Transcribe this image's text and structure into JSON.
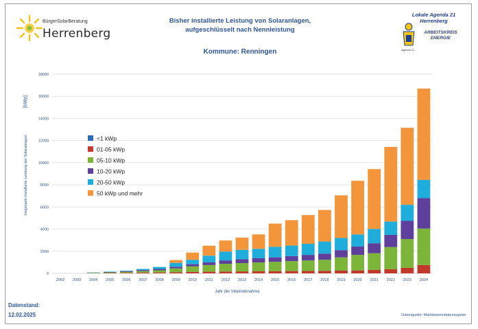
{
  "header": {
    "logo_small": "BürgerSolarBeratung",
    "logo_big": "Herrenberg",
    "title_line1": "Bisher installierte Leistung von Solaranlagen,",
    "title_line2": "aufgeschlüsselt nach Nennleistung",
    "subtitle": "Kommune: Renningen",
    "right_logo_line1": "Lokale Agenda 21",
    "right_logo_line2": "Herrenberg",
    "right_logo_line3": "ARBEITSKREIS",
    "right_logo_line4": "ENERGIE",
    "right_logo_small": "Agenda 21"
  },
  "footer": {
    "stand_label": "Datenstand:",
    "stand_date": "12.02.2025",
    "source": "Datenquelle: Marktstammdatenregister"
  },
  "colors": {
    "lt1": "#2f6db5",
    "s01_05": "#c0392b",
    "s05_10": "#7db43a",
    "s10_20": "#5e3f9c",
    "s20_50": "#1faedb",
    "s50plus": "#f3953a",
    "grid": "#d9d9d9",
    "text": "#2e5597"
  },
  "chart_data": {
    "type": "bar",
    "stacked": true,
    "title": "",
    "xlabel": "Jahr der Inbetriebnahme",
    "ylabel": "Insgesamt installierte Leistung der Solaranlagen",
    "ylabel_unit": "[kWp]",
    "ylim": [
      0,
      18000
    ],
    "yticks": [
      0,
      2000,
      4000,
      6000,
      8000,
      10000,
      12000,
      14000,
      16000,
      18000
    ],
    "grid": true,
    "legend_position": "left",
    "categories": [
      "2002",
      "2003",
      "2004",
      "2005",
      "2006",
      "2007",
      "2008",
      "2009",
      "2010",
      "2011",
      "2012",
      "2013",
      "2014",
      "2015",
      "2016",
      "2017",
      "2018",
      "2019",
      "2020",
      "2021",
      "2022",
      "2023",
      "2024"
    ],
    "series": [
      {
        "name": "<1 kWp",
        "values": [
          0,
          0,
          0,
          0,
          0,
          0,
          0,
          0,
          0,
          0,
          0,
          0,
          0,
          0,
          0,
          0,
          0,
          0,
          0,
          0,
          0,
          0,
          0
        ]
      },
      {
        "name": "01-05 kWp",
        "values": [
          0,
          0,
          10,
          30,
          50,
          70,
          80,
          100,
          130,
          150,
          170,
          180,
          190,
          200,
          210,
          220,
          230,
          250,
          270,
          320,
          380,
          500,
          750
        ]
      },
      {
        "name": "05-10 kWp",
        "values": [
          0,
          0,
          40,
          60,
          90,
          140,
          200,
          350,
          500,
          600,
          700,
          750,
          800,
          850,
          900,
          950,
          1000,
          1200,
          1400,
          1500,
          2000,
          2600,
          3300
        ]
      },
      {
        "name": "10-20 kWp",
        "values": [
          0,
          0,
          20,
          40,
          60,
          90,
          120,
          150,
          200,
          250,
          300,
          350,
          380,
          400,
          450,
          500,
          550,
          650,
          750,
          900,
          1100,
          1650,
          2750
        ]
      },
      {
        "name": "20-50 kWp",
        "values": [
          0,
          0,
          20,
          30,
          50,
          100,
          180,
          350,
          400,
          600,
          800,
          850,
          850,
          950,
          950,
          1000,
          1100,
          1100,
          1100,
          1300,
          1200,
          1450,
          1650
        ]
      },
      {
        "name": "50 kWp und mehr",
        "values": [
          0,
          0,
          0,
          0,
          0,
          0,
          0,
          250,
          650,
          900,
          1000,
          1100,
          1300,
          2100,
          2300,
          2600,
          2850,
          3850,
          4850,
          5400,
          6750,
          6950,
          8250
        ]
      }
    ]
  }
}
